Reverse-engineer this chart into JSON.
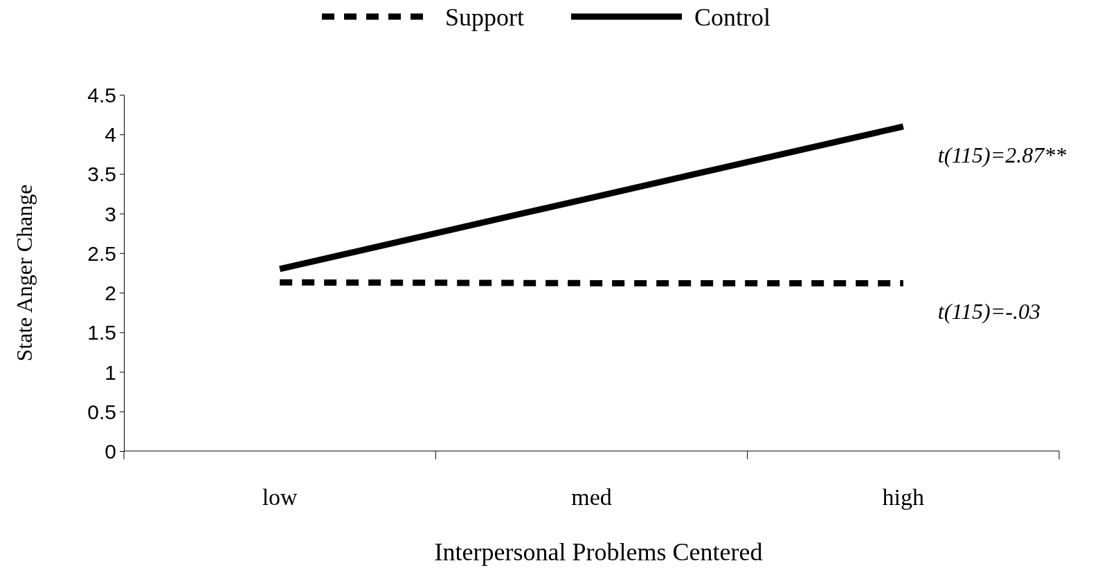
{
  "chart_data": {
    "type": "line",
    "xlabel": "Interpersonal Problems Centered",
    "ylabel": "State Anger Change",
    "categories": [
      "low",
      "med",
      "high"
    ],
    "series": [
      {
        "name": "Support",
        "color": "#000000",
        "line_style": "dashed",
        "values": [
          2.13,
          2.12,
          2.12
        ]
      },
      {
        "name": "Control",
        "color": "#000000",
        "line_style": "solid",
        "values": [
          2.3,
          3.2,
          4.1
        ]
      }
    ],
    "ylim": [
      0,
      4.5
    ],
    "yticks": [
      0,
      0.5,
      1,
      1.5,
      2,
      2.5,
      3,
      3.5,
      4,
      4.5
    ],
    "grid": false,
    "legend": "top",
    "marker": "none",
    "annotations": [
      {
        "text": "t(115)=2.87**",
        "x": "high",
        "y": 4.1
      },
      {
        "text": "t(115)=-.03",
        "x": "high",
        "y": 2.12
      }
    ]
  }
}
